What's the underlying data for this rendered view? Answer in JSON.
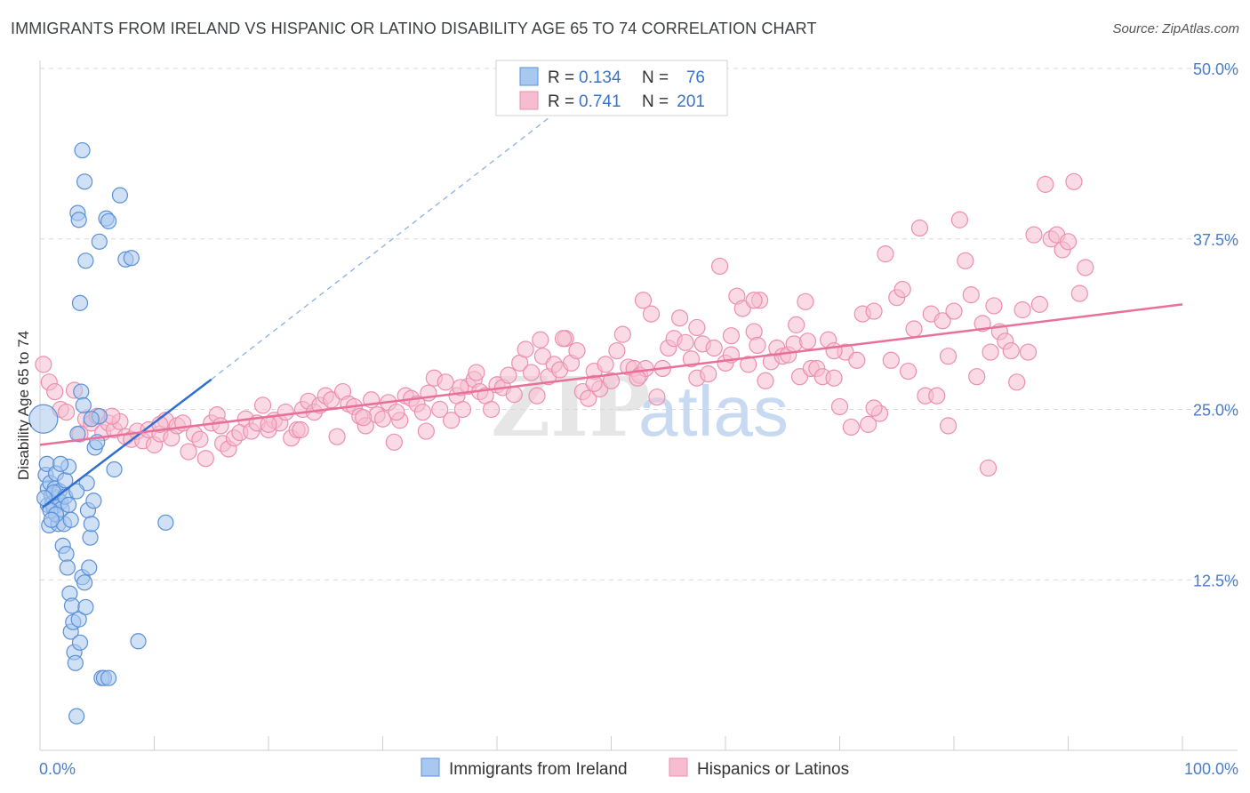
{
  "title": "IMMIGRANTS FROM IRELAND VS HISPANIC OR LATINO DISABILITY AGE 65 TO 74 CORRELATION CHART",
  "source": "Source: ZipAtlas.com",
  "watermark": {
    "zip": "ZIP",
    "atlas": "atlas"
  },
  "colors": {
    "blue_fill": "#a9c8ef",
    "blue_stroke": "#5b90d8",
    "blue_line": "#2f6fd0",
    "pink_fill": "#f6bdd0",
    "pink_stroke": "#ec8fae",
    "pink_line": "#e8709a",
    "tick_color": "#4a7cc9",
    "grid": "#d8d8d8"
  },
  "legend": {
    "rows": [
      {
        "r_label": "R = ",
        "r_value": "0.134",
        "n_label": "N = ",
        "n_value": "76"
      },
      {
        "r_label": "R = ",
        "r_value": "0.741",
        "n_label": "N = ",
        "n_value": "201"
      }
    ]
  },
  "chart_data": {
    "type": "scatter",
    "title": "IMMIGRANTS FROM IRELAND VS HISPANIC OR LATINO DISABILITY AGE 65 TO 74 CORRELATION CHART",
    "xlabel": "",
    "ylabel": "Disability Age 65 to 74",
    "xlim": [
      0,
      100
    ],
    "ylim": [
      0,
      50
    ],
    "x_tick_labels": [
      "0.0%",
      "100.0%"
    ],
    "y_ticks": [
      12.5,
      25.0,
      37.5,
      50.0
    ],
    "y_tick_labels": [
      "12.5%",
      "25.0%",
      "37.5%",
      "50.0%"
    ],
    "grid": true,
    "series": [
      {
        "name": "Immigrants from Ireland",
        "color": "#a9c8ef",
        "trendline": {
          "x": [
            0.2,
            15.0
          ],
          "y": [
            17.8,
            27.2
          ],
          "dashed_to": [
            47.5,
            48.3
          ]
        },
        "points": [
          [
            0.3,
            24.3
          ],
          [
            0.5,
            20.2
          ],
          [
            0.6,
            21.0
          ],
          [
            0.7,
            19.2
          ],
          [
            0.7,
            18.0
          ],
          [
            0.8,
            16.5
          ],
          [
            0.9,
            19.6
          ],
          [
            1.0,
            18.7
          ],
          [
            1.1,
            18.1
          ],
          [
            1.2,
            17.8
          ],
          [
            1.3,
            19.2
          ],
          [
            1.4,
            20.3
          ],
          [
            1.5,
            18.5
          ],
          [
            1.6,
            16.6
          ],
          [
            1.7,
            19.0
          ],
          [
            1.8,
            18.2
          ],
          [
            1.9,
            17.7
          ],
          [
            2.0,
            15.0
          ],
          [
            2.1,
            16.6
          ],
          [
            2.2,
            19.8
          ],
          [
            2.3,
            14.4
          ],
          [
            2.4,
            13.4
          ],
          [
            2.5,
            20.8
          ],
          [
            2.6,
            11.5
          ],
          [
            2.7,
            8.7
          ],
          [
            2.8,
            10.6
          ],
          [
            2.9,
            9.4
          ],
          [
            3.0,
            7.2
          ],
          [
            3.1,
            6.4
          ],
          [
            3.2,
            2.5
          ],
          [
            3.3,
            23.2
          ],
          [
            3.4,
            9.6
          ],
          [
            3.5,
            7.9
          ],
          [
            3.6,
            26.3
          ],
          [
            3.7,
            12.7
          ],
          [
            3.8,
            25.3
          ],
          [
            3.9,
            12.3
          ],
          [
            4.0,
            10.5
          ],
          [
            4.1,
            19.6
          ],
          [
            4.2,
            17.6
          ],
          [
            4.3,
            13.4
          ],
          [
            4.4,
            15.6
          ],
          [
            4.5,
            16.6
          ],
          [
            4.7,
            18.3
          ],
          [
            4.8,
            22.2
          ],
          [
            5.0,
            22.6
          ],
          [
            5.2,
            24.5
          ],
          [
            5.4,
            5.3
          ],
          [
            5.6,
            5.3
          ],
          [
            6.0,
            5.3
          ],
          [
            6.5,
            20.6
          ],
          [
            8.6,
            8.0
          ],
          [
            11.0,
            16.7
          ],
          [
            3.3,
            39.4
          ],
          [
            3.4,
            38.9
          ],
          [
            3.5,
            32.8
          ],
          [
            3.7,
            44.0
          ],
          [
            3.9,
            41.7
          ],
          [
            4.0,
            35.9
          ],
          [
            4.5,
            24.3
          ],
          [
            5.2,
            37.3
          ],
          [
            5.8,
            39.0
          ],
          [
            6.0,
            38.8
          ],
          [
            7.0,
            40.7
          ],
          [
            7.5,
            36.0
          ],
          [
            8.0,
            36.1
          ],
          [
            1.2,
            18.9
          ],
          [
            0.9,
            17.6
          ],
          [
            1.4,
            17.3
          ],
          [
            2.2,
            18.6
          ],
          [
            1.8,
            21.0
          ],
          [
            2.5,
            18.0
          ],
          [
            0.4,
            18.5
          ],
          [
            1.0,
            16.9
          ],
          [
            2.7,
            16.9
          ],
          [
            3.2,
            19.0
          ]
        ]
      },
      {
        "name": "Hispanics or Latinos",
        "color": "#f6bdd0",
        "trendline": {
          "x": [
            0,
            100
          ],
          "y": [
            22.4,
            32.7
          ]
        },
        "points": [
          [
            0.3,
            28.3
          ],
          [
            0.8,
            27.0
          ],
          [
            1.3,
            26.3
          ],
          [
            1.8,
            25.0
          ],
          [
            2.3,
            24.8
          ],
          [
            3.0,
            26.4
          ],
          [
            3.5,
            23.2
          ],
          [
            4.0,
            24.3
          ],
          [
            4.5,
            24.0
          ],
          [
            5.0,
            24.5
          ],
          [
            5.5,
            23.3
          ],
          [
            6.0,
            24.0
          ],
          [
            6.5,
            23.5
          ],
          [
            7.0,
            24.1
          ],
          [
            7.5,
            23.0
          ],
          [
            8.0,
            22.8
          ],
          [
            8.5,
            23.4
          ],
          [
            9.0,
            22.7
          ],
          [
            9.5,
            23.5
          ],
          [
            10.0,
            22.4
          ],
          [
            10.5,
            23.2
          ],
          [
            11.0,
            24.2
          ],
          [
            11.5,
            22.9
          ],
          [
            12.0,
            23.8
          ],
          [
            12.5,
            24.0
          ],
          [
            13.0,
            21.9
          ],
          [
            13.5,
            23.2
          ],
          [
            14.0,
            22.8
          ],
          [
            14.5,
            21.4
          ],
          [
            15.0,
            24.0
          ],
          [
            15.5,
            24.6
          ],
          [
            16.0,
            22.5
          ],
          [
            16.5,
            22.1
          ],
          [
            17.0,
            22.9
          ],
          [
            17.5,
            23.3
          ],
          [
            18.0,
            24.3
          ],
          [
            18.5,
            23.4
          ],
          [
            19.0,
            24.0
          ],
          [
            19.5,
            25.3
          ],
          [
            20.0,
            23.5
          ],
          [
            20.5,
            24.2
          ],
          [
            21.0,
            24.0
          ],
          [
            21.5,
            24.8
          ],
          [
            22.0,
            22.9
          ],
          [
            22.5,
            23.5
          ],
          [
            23.0,
            25.0
          ],
          [
            23.5,
            25.6
          ],
          [
            24.0,
            24.8
          ],
          [
            24.5,
            25.3
          ],
          [
            25.0,
            26.0
          ],
          [
            25.5,
            25.7
          ],
          [
            26.0,
            23.0
          ],
          [
            26.5,
            26.3
          ],
          [
            27.0,
            25.4
          ],
          [
            27.5,
            25.2
          ],
          [
            28.0,
            24.5
          ],
          [
            28.5,
            23.8
          ],
          [
            29.0,
            25.7
          ],
          [
            29.5,
            24.6
          ],
          [
            30.0,
            24.3
          ],
          [
            30.5,
            25.5
          ],
          [
            31.0,
            22.6
          ],
          [
            31.5,
            24.2
          ],
          [
            32.0,
            26.0
          ],
          [
            32.5,
            25.8
          ],
          [
            33.0,
            25.4
          ],
          [
            33.5,
            24.8
          ],
          [
            34.0,
            26.2
          ],
          [
            34.5,
            27.3
          ],
          [
            35.0,
            25.0
          ],
          [
            35.5,
            27.0
          ],
          [
            36.0,
            24.2
          ],
          [
            36.5,
            26.0
          ],
          [
            37.0,
            25.0
          ],
          [
            37.5,
            26.7
          ],
          [
            38.0,
            27.2
          ],
          [
            38.5,
            26.3
          ],
          [
            39.0,
            26.0
          ],
          [
            39.5,
            25.0
          ],
          [
            40.0,
            26.8
          ],
          [
            40.5,
            26.6
          ],
          [
            41.0,
            27.5
          ],
          [
            41.5,
            26.1
          ],
          [
            42.0,
            28.4
          ],
          [
            42.5,
            29.4
          ],
          [
            43.0,
            27.7
          ],
          [
            43.5,
            26.0
          ],
          [
            44.0,
            28.9
          ],
          [
            44.5,
            27.4
          ],
          [
            45.0,
            28.3
          ],
          [
            45.5,
            27.9
          ],
          [
            46.0,
            30.2
          ],
          [
            46.5,
            28.4
          ],
          [
            47.0,
            29.3
          ],
          [
            47.5,
            26.3
          ],
          [
            48.0,
            25.8
          ],
          [
            48.5,
            27.8
          ],
          [
            49.0,
            26.5
          ],
          [
            49.5,
            28.3
          ],
          [
            50.0,
            27.1
          ],
          [
            50.5,
            29.3
          ],
          [
            51.0,
            30.5
          ],
          [
            51.5,
            28.1
          ],
          [
            52.0,
            28.0
          ],
          [
            52.5,
            27.5
          ],
          [
            53.0,
            28.0
          ],
          [
            53.5,
            32.0
          ],
          [
            54.0,
            25.9
          ],
          [
            54.5,
            28.0
          ],
          [
            55.0,
            29.5
          ],
          [
            55.5,
            30.2
          ],
          [
            56.0,
            31.7
          ],
          [
            56.5,
            29.9
          ],
          [
            57.0,
            28.7
          ],
          [
            57.5,
            27.3
          ],
          [
            58.0,
            29.8
          ],
          [
            58.5,
            27.6
          ],
          [
            59.0,
            29.5
          ],
          [
            59.5,
            35.5
          ],
          [
            60.0,
            28.4
          ],
          [
            60.5,
            30.4
          ],
          [
            61.0,
            33.3
          ],
          [
            61.5,
            32.4
          ],
          [
            62.0,
            28.3
          ],
          [
            62.5,
            30.7
          ],
          [
            63.0,
            33.0
          ],
          [
            63.5,
            27.1
          ],
          [
            64.0,
            28.5
          ],
          [
            64.5,
            29.5
          ],
          [
            65.0,
            28.9
          ],
          [
            65.5,
            29.0
          ],
          [
            66.0,
            29.8
          ],
          [
            66.5,
            27.4
          ],
          [
            67.0,
            32.9
          ],
          [
            67.5,
            28.0
          ],
          [
            68.0,
            28.0
          ],
          [
            68.5,
            27.4
          ],
          [
            69.0,
            30.1
          ],
          [
            69.5,
            27.3
          ],
          [
            70.0,
            25.2
          ],
          [
            70.5,
            29.2
          ],
          [
            71.0,
            23.7
          ],
          [
            71.5,
            28.6
          ],
          [
            72.0,
            32.0
          ],
          [
            72.5,
            23.9
          ],
          [
            73.0,
            32.2
          ],
          [
            73.5,
            24.7
          ],
          [
            74.0,
            36.4
          ],
          [
            74.5,
            28.6
          ],
          [
            75.0,
            33.2
          ],
          [
            75.5,
            33.8
          ],
          [
            76.0,
            27.8
          ],
          [
            76.5,
            30.9
          ],
          [
            77.0,
            38.3
          ],
          [
            77.5,
            26.0
          ],
          [
            78.0,
            32.0
          ],
          [
            78.5,
            26.0
          ],
          [
            79.0,
            31.5
          ],
          [
            79.5,
            28.9
          ],
          [
            80.0,
            32.2
          ],
          [
            80.5,
            38.9
          ],
          [
            81.0,
            35.9
          ],
          [
            81.5,
            33.4
          ],
          [
            82.0,
            27.4
          ],
          [
            82.5,
            31.3
          ],
          [
            83.0,
            20.7
          ],
          [
            83.5,
            32.6
          ],
          [
            84.0,
            30.7
          ],
          [
            84.5,
            30.0
          ],
          [
            85.0,
            29.3
          ],
          [
            85.5,
            27.0
          ],
          [
            86.0,
            32.3
          ],
          [
            86.5,
            29.2
          ],
          [
            87.0,
            37.8
          ],
          [
            87.5,
            32.7
          ],
          [
            88.0,
            41.5
          ],
          [
            88.5,
            37.5
          ],
          [
            89.0,
            37.8
          ],
          [
            89.5,
            36.7
          ],
          [
            90.0,
            37.3
          ],
          [
            90.5,
            41.7
          ],
          [
            91.0,
            33.5
          ],
          [
            91.5,
            35.4
          ],
          [
            62.5,
            33.0
          ],
          [
            73.0,
            25.1
          ],
          [
            79.5,
            23.8
          ],
          [
            20.0,
            23.9
          ],
          [
            15.8,
            23.8
          ],
          [
            10.5,
            23.9
          ],
          [
            6.3,
            24.5
          ],
          [
            38.2,
            27.7
          ],
          [
            45.8,
            30.2
          ],
          [
            52.8,
            33.0
          ],
          [
            67.2,
            30.0
          ],
          [
            69.5,
            29.3
          ],
          [
            83.2,
            29.2
          ],
          [
            60.5,
            29.0
          ],
          [
            43.8,
            30.1
          ],
          [
            36.8,
            26.6
          ],
          [
            22.8,
            23.5
          ],
          [
            28.3,
            24.4
          ],
          [
            31.2,
            24.8
          ],
          [
            33.8,
            23.4
          ],
          [
            48.5,
            26.9
          ],
          [
            52.3,
            27.3
          ],
          [
            57.5,
            31.0
          ],
          [
            62.8,
            29.7
          ],
          [
            66.2,
            31.2
          ]
        ]
      }
    ],
    "legend_position": "top-center"
  }
}
